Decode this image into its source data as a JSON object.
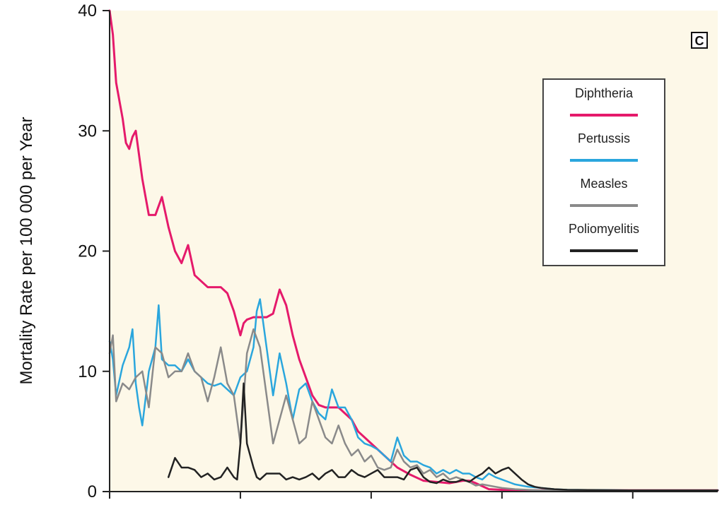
{
  "chart_data": {
    "type": "line",
    "panel_label": "C",
    "ylabel": "Mortality Rate per 100 000 per Year",
    "xlabel": "",
    "ylim": [
      0,
      40
    ],
    "xlim": [
      0,
      93
    ],
    "yticks": [
      0,
      10,
      20,
      30,
      40
    ],
    "ytick_labels": [
      "0",
      "10",
      "20",
      "30",
      "40"
    ],
    "xticks": [
      0,
      20,
      40,
      60,
      80
    ],
    "grid": false,
    "legend_position": "top-right",
    "series": [
      {
        "name": "Diphtheria",
        "color": "#e51a6b",
        "points": [
          [
            0,
            40
          ],
          [
            0.5,
            38
          ],
          [
            1,
            34
          ],
          [
            2,
            31
          ],
          [
            2.5,
            29
          ],
          [
            3,
            28.5
          ],
          [
            3.5,
            29.5
          ],
          [
            4,
            30
          ],
          [
            5,
            26
          ],
          [
            6,
            23
          ],
          [
            7,
            23
          ],
          [
            8,
            24.5
          ],
          [
            9,
            22
          ],
          [
            10,
            20
          ],
          [
            11,
            19
          ],
          [
            12,
            20.5
          ],
          [
            13,
            18
          ],
          [
            14,
            17.5
          ],
          [
            15,
            17
          ],
          [
            16,
            17
          ],
          [
            17,
            17
          ],
          [
            18,
            16.5
          ],
          [
            19,
            15
          ],
          [
            20,
            13
          ],
          [
            20.5,
            14
          ],
          [
            21,
            14.3
          ],
          [
            22,
            14.5
          ],
          [
            23,
            14.5
          ],
          [
            24,
            14.5
          ],
          [
            25,
            14.8
          ],
          [
            26,
            16.8
          ],
          [
            27,
            15.5
          ],
          [
            28,
            13
          ],
          [
            29,
            11
          ],
          [
            30,
            9.5
          ],
          [
            31,
            8
          ],
          [
            32,
            7.2
          ],
          [
            33,
            7
          ],
          [
            34,
            7
          ],
          [
            35,
            7
          ],
          [
            36,
            6.5
          ],
          [
            37,
            6
          ],
          [
            38,
            5
          ],
          [
            39,
            4.5
          ],
          [
            40,
            4
          ],
          [
            42,
            3
          ],
          [
            44,
            2
          ],
          [
            46,
            1.4
          ],
          [
            48,
            0.9
          ],
          [
            50,
            0.8
          ],
          [
            52,
            0.7
          ],
          [
            54,
            0.9
          ],
          [
            55,
            0.9
          ],
          [
            56,
            0.7
          ],
          [
            58,
            0.2
          ],
          [
            60,
            0.15
          ],
          [
            62,
            0.12
          ],
          [
            64,
            0.1
          ],
          [
            66,
            0.1
          ],
          [
            70,
            0.1
          ],
          [
            80,
            0.1
          ],
          [
            90,
            0.1
          ],
          [
            93,
            0.1
          ]
        ]
      },
      {
        "name": "Pertussis",
        "color": "#2aa6dd",
        "points": [
          [
            0,
            12.5
          ],
          [
            0.5,
            11
          ],
          [
            1,
            8
          ],
          [
            2,
            10.5
          ],
          [
            3,
            12
          ],
          [
            3.5,
            13.5
          ],
          [
            4,
            9
          ],
          [
            4.5,
            7
          ],
          [
            5,
            5.5
          ],
          [
            6,
            10
          ],
          [
            7,
            12
          ],
          [
            7.5,
            15.5
          ],
          [
            8,
            11
          ],
          [
            9,
            10.5
          ],
          [
            10,
            10.5
          ],
          [
            11,
            10
          ],
          [
            12,
            11
          ],
          [
            13,
            10
          ],
          [
            14,
            9.5
          ],
          [
            15,
            9
          ],
          [
            16,
            8.8
          ],
          [
            17,
            9
          ],
          [
            18,
            8.5
          ],
          [
            19,
            8
          ],
          [
            20,
            9.5
          ],
          [
            21,
            10
          ],
          [
            22,
            12
          ],
          [
            22.5,
            15
          ],
          [
            23,
            16
          ],
          [
            24,
            12
          ],
          [
            25,
            8
          ],
          [
            26,
            11.5
          ],
          [
            27,
            9
          ],
          [
            28,
            6
          ],
          [
            29,
            8.5
          ],
          [
            30,
            9
          ],
          [
            31,
            7.5
          ],
          [
            32,
            6.5
          ],
          [
            33,
            6
          ],
          [
            34,
            8.5
          ],
          [
            35,
            7
          ],
          [
            36,
            7
          ],
          [
            37,
            6
          ],
          [
            38,
            4.5
          ],
          [
            39,
            4
          ],
          [
            40,
            3.8
          ],
          [
            41,
            3.5
          ],
          [
            42,
            3
          ],
          [
            43,
            2.5
          ],
          [
            44,
            4.5
          ],
          [
            45,
            3
          ],
          [
            46,
            2.5
          ],
          [
            47,
            2.5
          ],
          [
            48,
            2.2
          ],
          [
            49,
            2
          ],
          [
            50,
            1.5
          ],
          [
            51,
            1.8
          ],
          [
            52,
            1.5
          ],
          [
            53,
            1.8
          ],
          [
            54,
            1.5
          ],
          [
            55,
            1.5
          ],
          [
            56,
            1.2
          ],
          [
            57,
            1
          ],
          [
            58,
            1.5
          ],
          [
            59,
            1.2
          ],
          [
            60,
            1
          ],
          [
            61,
            0.8
          ],
          [
            62,
            0.6
          ],
          [
            63,
            0.5
          ],
          [
            64,
            0.4
          ],
          [
            66,
            0.3
          ],
          [
            68,
            0.2
          ],
          [
            70,
            0.15
          ],
          [
            80,
            0.1
          ],
          [
            93,
            0.1
          ]
        ]
      },
      {
        "name": "Measles",
        "color": "#8a8a8a",
        "points": [
          [
            0,
            11.5
          ],
          [
            0.5,
            13
          ],
          [
            1,
            7.5
          ],
          [
            2,
            9
          ],
          [
            3,
            8.5
          ],
          [
            4,
            9.5
          ],
          [
            5,
            10
          ],
          [
            6,
            7
          ],
          [
            7,
            12
          ],
          [
            8,
            11.5
          ],
          [
            9,
            9.5
          ],
          [
            10,
            10
          ],
          [
            11,
            10
          ],
          [
            12,
            11.5
          ],
          [
            13,
            10
          ],
          [
            14,
            9.5
          ],
          [
            15,
            7.5
          ],
          [
            16,
            9.5
          ],
          [
            17,
            12
          ],
          [
            18,
            9
          ],
          [
            19,
            8
          ],
          [
            20,
            4
          ],
          [
            21,
            11.5
          ],
          [
            22,
            13.5
          ],
          [
            23,
            12
          ],
          [
            24,
            8
          ],
          [
            25,
            4
          ],
          [
            26,
            6
          ],
          [
            27,
            8
          ],
          [
            28,
            6
          ],
          [
            29,
            4
          ],
          [
            30,
            4.5
          ],
          [
            31,
            7.5
          ],
          [
            32,
            6
          ],
          [
            33,
            4.5
          ],
          [
            34,
            4
          ],
          [
            35,
            5.5
          ],
          [
            36,
            4
          ],
          [
            37,
            3
          ],
          [
            38,
            3.5
          ],
          [
            39,
            2.5
          ],
          [
            40,
            3
          ],
          [
            41,
            2
          ],
          [
            42,
            1.8
          ],
          [
            43,
            2
          ],
          [
            44,
            3.5
          ],
          [
            45,
            2.5
          ],
          [
            46,
            2
          ],
          [
            47,
            2.2
          ],
          [
            48,
            1.5
          ],
          [
            49,
            1.8
          ],
          [
            50,
            1.2
          ],
          [
            51,
            1.5
          ],
          [
            52,
            1
          ],
          [
            53,
            1.2
          ],
          [
            54,
            1
          ],
          [
            55,
            0.8
          ],
          [
            56,
            0.5
          ],
          [
            57,
            0.6
          ],
          [
            58,
            0.5
          ],
          [
            59,
            0.4
          ],
          [
            60,
            0.3
          ],
          [
            62,
            0.2
          ],
          [
            64,
            0.15
          ],
          [
            66,
            0.1
          ],
          [
            70,
            0.1
          ],
          [
            80,
            0.1
          ],
          [
            93,
            0.1
          ]
        ]
      },
      {
        "name": "Poliomyelitis",
        "color": "#222222",
        "points": [
          [
            9,
            1.2
          ],
          [
            10,
            2.8
          ],
          [
            11,
            2
          ],
          [
            12,
            2
          ],
          [
            13,
            1.8
          ],
          [
            14,
            1.2
          ],
          [
            15,
            1.5
          ],
          [
            16,
            1
          ],
          [
            17,
            1.2
          ],
          [
            18,
            2
          ],
          [
            19,
            1.2
          ],
          [
            19.5,
            1
          ],
          [
            20,
            4
          ],
          [
            20.5,
            9
          ],
          [
            21,
            4
          ],
          [
            22,
            2
          ],
          [
            22.5,
            1.2
          ],
          [
            23,
            1
          ],
          [
            24,
            1.5
          ],
          [
            25,
            1.5
          ],
          [
            26,
            1.5
          ],
          [
            27,
            1
          ],
          [
            28,
            1.2
          ],
          [
            29,
            1
          ],
          [
            30,
            1.2
          ],
          [
            31,
            1.5
          ],
          [
            32,
            1
          ],
          [
            33,
            1.5
          ],
          [
            34,
            1.8
          ],
          [
            35,
            1.2
          ],
          [
            36,
            1.2
          ],
          [
            37,
            1.8
          ],
          [
            38,
            1.4
          ],
          [
            39,
            1.2
          ],
          [
            40,
            1.5
          ],
          [
            41,
            1.8
          ],
          [
            42,
            1.2
          ],
          [
            43,
            1.2
          ],
          [
            44,
            1.2
          ],
          [
            45,
            1
          ],
          [
            46,
            1.8
          ],
          [
            47,
            2
          ],
          [
            48,
            1.2
          ],
          [
            49,
            0.8
          ],
          [
            50,
            0.7
          ],
          [
            51,
            1
          ],
          [
            52,
            0.8
          ],
          [
            53,
            0.8
          ],
          [
            54,
            1
          ],
          [
            55,
            0.8
          ],
          [
            56,
            1.2
          ],
          [
            57,
            1.5
          ],
          [
            58,
            2
          ],
          [
            59,
            1.5
          ],
          [
            60,
            1.8
          ],
          [
            61,
            2
          ],
          [
            62,
            1.5
          ],
          [
            63,
            1
          ],
          [
            64,
            0.6
          ],
          [
            65,
            0.4
          ],
          [
            66,
            0.3
          ],
          [
            68,
            0.2
          ],
          [
            70,
            0.15
          ],
          [
            80,
            0.1
          ],
          [
            93,
            0.1
          ]
        ]
      }
    ]
  }
}
